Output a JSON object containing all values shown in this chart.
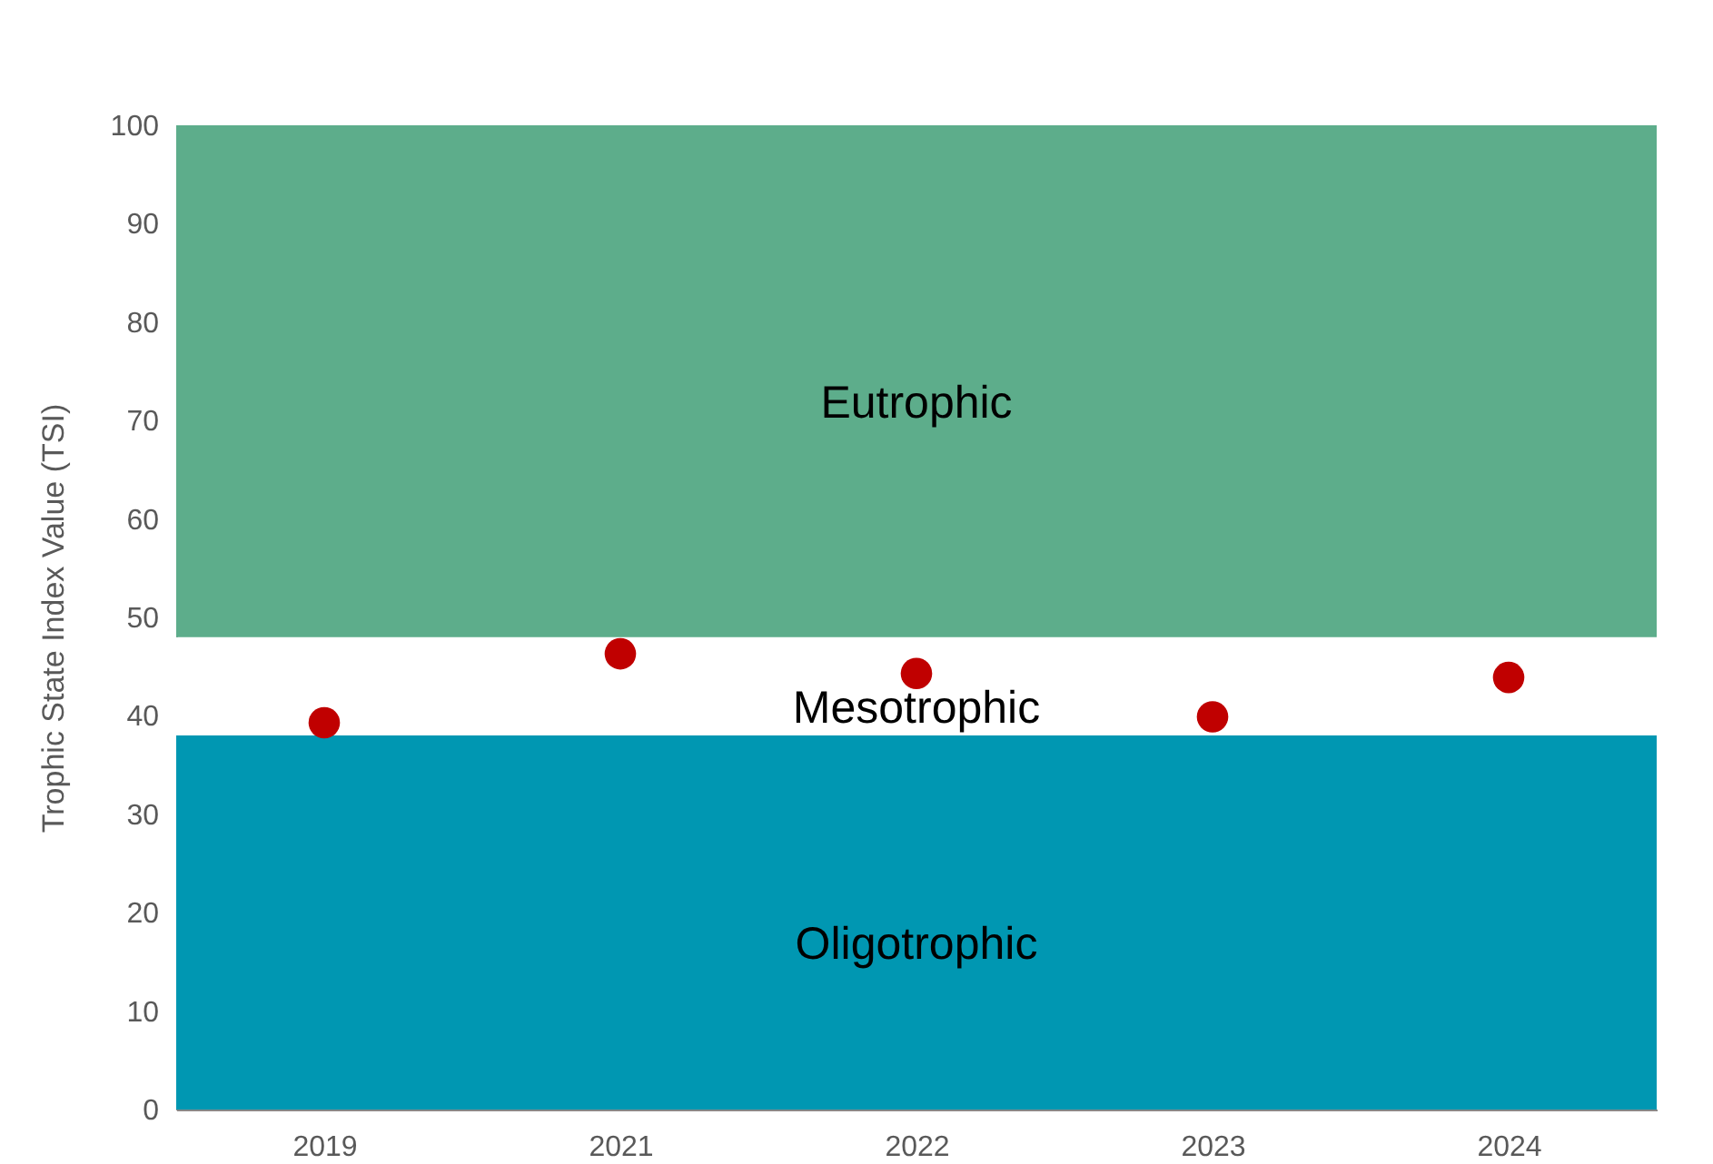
{
  "chart_data": {
    "type": "scatter",
    "ylabel": "Trophic State Index Value (TSI)",
    "categories": [
      "2019",
      "2021",
      "2022",
      "2023",
      "2024"
    ],
    "series": [
      {
        "color": "#c00000",
        "values": [
          39.3,
          46.3,
          44.3,
          39.9,
          43.9
        ]
      }
    ],
    "bands": [
      {
        "axis": "y",
        "from": 0,
        "to": 38,
        "label": "Oligotrophic",
        "color": "#0097b2"
      },
      {
        "axis": "y",
        "from": 38,
        "to": 48,
        "label": "Mesotrophic",
        "color": "#ffffff"
      },
      {
        "axis": "y",
        "from": 48,
        "to": 100,
        "label": "Eutrophic",
        "color": "#5dad8b"
      }
    ],
    "ylim": [
      0,
      100
    ],
    "yticks": [
      0,
      10,
      20,
      30,
      40,
      50,
      60,
      70,
      80,
      90,
      100
    ],
    "marker": "circle",
    "grid": false
  }
}
